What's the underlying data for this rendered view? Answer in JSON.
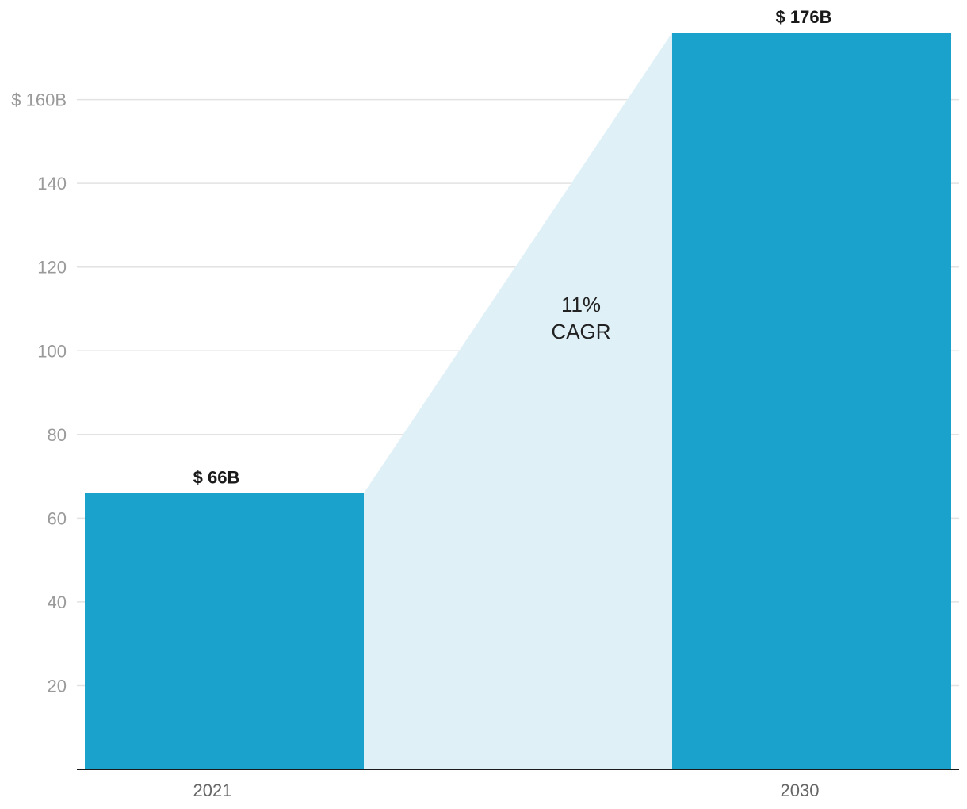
{
  "chart_data": {
    "type": "bar",
    "categories": [
      "2021",
      "2030"
    ],
    "values": [
      66,
      176
    ],
    "data_labels": [
      "$ 66B",
      "$ 176B"
    ],
    "ylim": [
      0,
      176
    ],
    "yticks": [
      20,
      40,
      60,
      80,
      100,
      120,
      140,
      160
    ],
    "ytick_labels": [
      "20",
      "40",
      "60",
      "80",
      "100",
      "120",
      "140",
      "$ 160B"
    ],
    "grid": true,
    "annotation": {
      "line1": "11%",
      "line2": "CAGR"
    },
    "colors": {
      "bar": "#1aa1cc",
      "growth_area": "#dff0f7",
      "grid": "#e2e2e2",
      "axis": "#1a1a1a"
    }
  }
}
